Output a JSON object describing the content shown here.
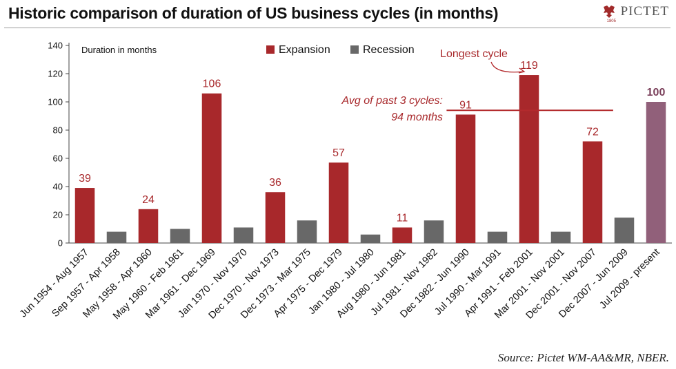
{
  "title": "Historic comparison of duration of US business cycles (in months)",
  "brand": {
    "name": "PICTET",
    "year": "1805",
    "color": "#a12a2a"
  },
  "source": "Source: Pictet WM-AA&MR, NBER.",
  "colors": {
    "expansion": "#a8282b",
    "recession": "#686868",
    "current": "#91607a",
    "avg_line": "#b32a2d"
  },
  "chart_data": {
    "type": "bar",
    "ylabel": "Duration in months",
    "ylim": [
      0,
      140
    ],
    "yticks": [
      0,
      20,
      40,
      60,
      80,
      100,
      120,
      140
    ],
    "grid": false,
    "legend": [
      {
        "key": "expansion",
        "label": "Expansion"
      },
      {
        "key": "recession",
        "label": "Recession"
      }
    ],
    "categories": [
      "Jun 1954 - Aug 1957",
      "Sep 1957 - Apr 1958",
      "May 1958 - Apr 1960",
      "May 1960 - Feb 1961",
      "Mar 1961 - Dec 1969",
      "Jan 1970 - Nov 1970",
      "Dec 1970 - Nov 1973",
      "Dec 1973 - Mar 1975",
      "Apr 1975 - Dec 1979",
      "Jan 1980 - Jul 1980",
      "Aug 1980 - Jun 1981",
      "Jul 1981 - Nov 1982",
      "Dec 1982 - Jun 1990",
      "Jul 1990 - Mar 1991",
      "Apr 1991 - Feb 2001",
      "Mar 2001 - Nov 2001",
      "Dec 2001 - Nov 2007",
      "Dec 2007 - Jun 2009",
      "Jul 2009 - present"
    ],
    "values": [
      39,
      8,
      24,
      10,
      106,
      11,
      36,
      16,
      57,
      6,
      11,
      16,
      91,
      8,
      119,
      8,
      72,
      18,
      100
    ],
    "kinds": [
      "expansion",
      "recession",
      "expansion",
      "recession",
      "expansion",
      "recession",
      "expansion",
      "recession",
      "expansion",
      "recession",
      "expansion",
      "recession",
      "expansion",
      "recession",
      "expansion",
      "recession",
      "expansion",
      "recession",
      "current"
    ],
    "data_labels": [
      "39",
      "",
      "24",
      "",
      "106",
      "",
      "36",
      "",
      "57",
      "",
      "11",
      "",
      "91",
      "",
      "119",
      "",
      "72",
      "",
      "100"
    ],
    "average": {
      "value": 94,
      "line1": "Avg of past 3 cycles:",
      "line2": "94 months",
      "from_index": 12,
      "to_index": 16
    },
    "annotation": {
      "text": "Longest cycle",
      "target_index": 14
    }
  }
}
